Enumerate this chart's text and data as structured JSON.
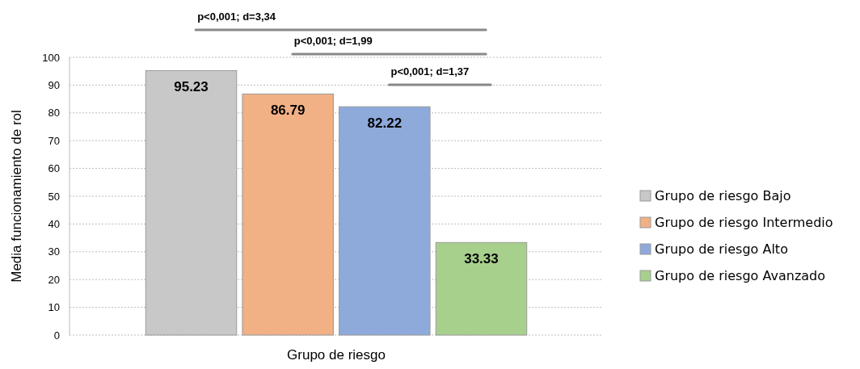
{
  "chart_data": {
    "type": "bar",
    "categories": [
      null
    ],
    "xlabel": "Grupo de riesgo",
    "ylabel": "Media funcionamiento de rol",
    "series": [
      {
        "name": "Grupo de riesgo Bajo",
        "color": "#c8c8c8",
        "values": [
          95.23
        ]
      },
      {
        "name": "Grupo de riesgo Intermedio",
        "color": "#f2b085",
        "values": [
          86.79
        ]
      },
      {
        "name": "Grupo de riesgo Alto",
        "color": "#8eaadb",
        "values": [
          82.22
        ]
      },
      {
        "name": "Grupo de riesgo Avanzado",
        "color": "#a8d08d",
        "values": [
          33.33
        ]
      }
    ],
    "ylim": [
      0,
      100
    ],
    "yticks": [
      0,
      10,
      20,
      30,
      40,
      50,
      60,
      70,
      80,
      90,
      100
    ],
    "grid": "y",
    "legend": "right",
    "data_labels": true,
    "annotations": [
      "p<0,001; d=3,34",
      "p<0,001; d=1,99",
      "p<0,001; d=1,37"
    ]
  }
}
